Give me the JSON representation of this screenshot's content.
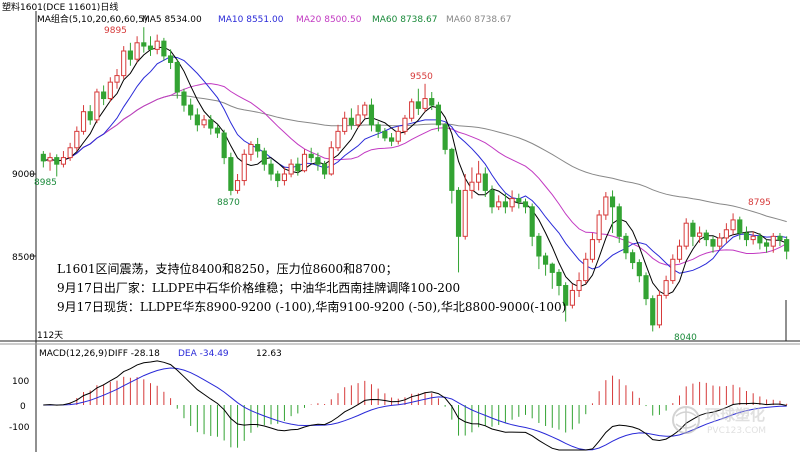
{
  "header": {
    "symbol": "塑料1601(DCE 11601)日线",
    "ma_group_label": "MA组合(5,10,20,60,60,5)",
    "ma5": "MA5 8534.00",
    "ma10": "MA10 8551.00",
    "ma20": "MA20 8500.50",
    "ma60": "MA60 8738.67",
    "ma60b": "MA60 8738.67"
  },
  "colors": {
    "up": "#d63a3a",
    "down": "#33a333",
    "ma5": "#000000",
    "ma10": "#2a2ad8",
    "ma20": "#c23ac2",
    "ma60": "#888888",
    "dif": "#000000",
    "dea": "#2a2ad8"
  },
  "price_axis": {
    "labels": [
      "9000",
      "8500"
    ]
  },
  "annotations": {
    "high1": "9895",
    "high2": "9550",
    "low1": "8985",
    "low2": "8870",
    "high3": "8795",
    "low3": "8040"
  },
  "notes": [
    "L1601区间震荡，支持位8400和8250，压力位8600和8700；",
    "9月17日出厂家：LLDPE中石华价格维稳；中油华北西南挂牌调降100-200",
    "9月17日现货：LLDPE华东8900-9200 (-100),华南9100-9200 (-50),华北8800-9000(-100)"
  ],
  "days_label": "112天",
  "macd": {
    "title": "MACD(12,26,9)",
    "diff": "DIFF  -28.18",
    "dea": "DEA  -34.49",
    "macd_val": "12.63",
    "axis_labels": [
      "100",
      "0",
      "-100"
    ]
  },
  "watermark": {
    "cn": "环球塑化",
    "url": "PVC123.COM"
  },
  "chart_data": {
    "type": "candlestick",
    "title": "塑料1601(DCE 11601)日线",
    "y_ticks": [
      9000,
      8500
    ],
    "macd_ticks": [
      100,
      0,
      -100
    ],
    "candles": [
      [
        9120,
        9080,
        9140,
        9040
      ],
      [
        9080,
        9100,
        9130,
        9020
      ],
      [
        9100,
        9060,
        9120,
        8985
      ],
      [
        9060,
        9100,
        9140,
        9040
      ],
      [
        9100,
        9160,
        9190,
        9080
      ],
      [
        9160,
        9260,
        9290,
        9140
      ],
      [
        9260,
        9380,
        9420,
        9240
      ],
      [
        9380,
        9330,
        9420,
        9300
      ],
      [
        9330,
        9500,
        9520,
        9310
      ],
      [
        9500,
        9460,
        9540,
        9420
      ],
      [
        9460,
        9560,
        9590,
        9440
      ],
      [
        9560,
        9600,
        9640,
        9520
      ],
      [
        9600,
        9750,
        9780,
        9580
      ],
      [
        9750,
        9700,
        9800,
        9660
      ],
      [
        9700,
        9800,
        9840,
        9680
      ],
      [
        9800,
        9780,
        9895,
        9740
      ],
      [
        9780,
        9760,
        9840,
        9720
      ],
      [
        9760,
        9810,
        9850,
        9730
      ],
      [
        9810,
        9720,
        9830,
        9690
      ],
      [
        9720,
        9680,
        9760,
        9640
      ],
      [
        9680,
        9500,
        9700,
        9460
      ],
      [
        9500,
        9420,
        9520,
        9380
      ],
      [
        9420,
        9360,
        9460,
        9330
      ],
      [
        9360,
        9300,
        9400,
        9260
      ],
      [
        9300,
        9330,
        9360,
        9280
      ],
      [
        9330,
        9280,
        9360,
        9240
      ],
      [
        9280,
        9250,
        9300,
        9220
      ],
      [
        9250,
        9100,
        9270,
        9060
      ],
      [
        9100,
        8900,
        9130,
        8870
      ],
      [
        8900,
        8960,
        9000,
        8880
      ],
      [
        8960,
        9120,
        9150,
        8930
      ],
      [
        9120,
        9180,
        9200,
        9080
      ],
      [
        9180,
        9140,
        9220,
        9100
      ],
      [
        9140,
        9060,
        9160,
        9020
      ],
      [
        9060,
        9000,
        9090,
        8960
      ],
      [
        9000,
        8960,
        9020,
        8920
      ],
      [
        8960,
        9000,
        9040,
        8930
      ],
      [
        9000,
        9060,
        9090,
        8980
      ],
      [
        9060,
        9020,
        9100,
        8990
      ],
      [
        9020,
        9120,
        9150,
        9010
      ],
      [
        9120,
        9100,
        9160,
        9070
      ],
      [
        9100,
        9060,
        9130,
        9020
      ],
      [
        9060,
        9000,
        9080,
        8970
      ],
      [
        9000,
        9160,
        9200,
        8990
      ],
      [
        9160,
        9260,
        9300,
        9140
      ],
      [
        9260,
        9340,
        9380,
        9240
      ],
      [
        9340,
        9300,
        9400,
        9270
      ],
      [
        9300,
        9360,
        9420,
        9280
      ],
      [
        9360,
        9420,
        9440,
        9340
      ],
      [
        9420,
        9300,
        9460,
        9260
      ],
      [
        9300,
        9260,
        9320,
        9220
      ],
      [
        9260,
        9220,
        9280,
        9200
      ],
      [
        9220,
        9200,
        9250,
        9170
      ],
      [
        9200,
        9260,
        9290,
        9180
      ],
      [
        9260,
        9340,
        9360,
        9240
      ],
      [
        9340,
        9440,
        9460,
        9320
      ],
      [
        9440,
        9400,
        9520,
        9360
      ],
      [
        9400,
        9460,
        9550,
        9380
      ],
      [
        9460,
        9420,
        9500,
        9390
      ],
      [
        9420,
        9300,
        9440,
        9260
      ],
      [
        9300,
        9150,
        9310,
        9120
      ],
      [
        9150,
        8900,
        9160,
        8820
      ],
      [
        8900,
        8620,
        8920,
        8400
      ],
      [
        8620,
        8900,
        9000,
        8600
      ],
      [
        8900,
        8950,
        9040,
        8850
      ],
      [
        8950,
        9000,
        9080,
        8900
      ],
      [
        9000,
        8900,
        9040,
        8860
      ],
      [
        8900,
        8800,
        8930,
        8760
      ],
      [
        8800,
        8830,
        8870,
        8780
      ],
      [
        8830,
        8800,
        8880,
        8760
      ],
      [
        8800,
        8850,
        8900,
        8770
      ],
      [
        8850,
        8830,
        8880,
        8790
      ],
      [
        8830,
        8800,
        8850,
        8760
      ],
      [
        8800,
        8620,
        8820,
        8560
      ],
      [
        8620,
        8500,
        8640,
        8420
      ],
      [
        8500,
        8450,
        8520,
        8380
      ],
      [
        8450,
        8400,
        8460,
        8300
      ],
      [
        8400,
        8320,
        8420,
        8260
      ],
      [
        8320,
        8200,
        8340,
        8100
      ],
      [
        8200,
        8290,
        8330,
        8180
      ],
      [
        8290,
        8350,
        8400,
        8250
      ],
      [
        8350,
        8480,
        8520,
        8330
      ],
      [
        8480,
        8600,
        8640,
        8460
      ],
      [
        8600,
        8750,
        8780,
        8580
      ],
      [
        8750,
        8860,
        8890,
        8720
      ],
      [
        8860,
        8800,
        8900,
        8640
      ],
      [
        8800,
        8620,
        8820,
        8580
      ],
      [
        8620,
        8520,
        8640,
        8480
      ],
      [
        8520,
        8460,
        8540,
        8420
      ],
      [
        8460,
        8380,
        8480,
        8340
      ],
      [
        8380,
        8240,
        8400,
        8200
      ],
      [
        8240,
        8080,
        8260,
        8040
      ],
      [
        8080,
        8260,
        8290,
        8060
      ],
      [
        8260,
        8350,
        8380,
        8240
      ],
      [
        8350,
        8480,
        8510,
        8330
      ],
      [
        8480,
        8560,
        8600,
        8460
      ],
      [
        8560,
        8700,
        8730,
        8540
      ],
      [
        8700,
        8620,
        8720,
        8560
      ],
      [
        8620,
        8640,
        8680,
        8580
      ],
      [
        8640,
        8600,
        8660,
        8560
      ],
      [
        8600,
        8560,
        8620,
        8520
      ],
      [
        8560,
        8610,
        8640,
        8540
      ],
      [
        8610,
        8660,
        8700,
        8580
      ],
      [
        8660,
        8720,
        8760,
        8630
      ],
      [
        8720,
        8640,
        8740,
        8600
      ],
      [
        8640,
        8600,
        8680,
        8560
      ],
      [
        8600,
        8620,
        8650,
        8570
      ],
      [
        8620,
        8580,
        8640,
        8540
      ],
      [
        8580,
        8560,
        8600,
        8520
      ],
      [
        8560,
        8620,
        8640,
        8520
      ],
      [
        8620,
        8600,
        8640,
        8560
      ],
      [
        8600,
        8530,
        8620,
        8480
      ]
    ]
  }
}
